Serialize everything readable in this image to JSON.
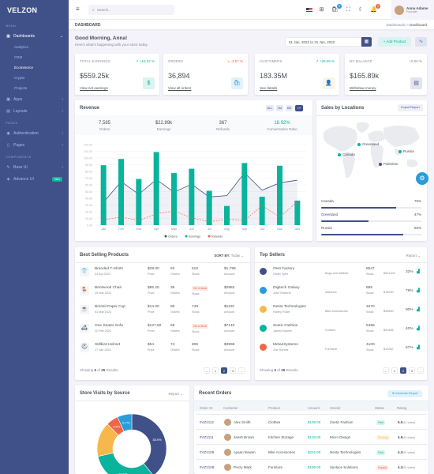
{
  "brand": "VELZON",
  "sidebar": {
    "menu_title": "MENU",
    "pages_title": "PAGES",
    "components_title": "COMPONENTS",
    "dashboards": "Dashboards",
    "sub": [
      "Analytics",
      "CRM",
      "Ecommerce",
      "Crypto",
      "Projects"
    ],
    "apps": "Apps",
    "layouts": "Layouts",
    "authentication": "Authentication",
    "pages": "Pages",
    "base_ui": "Base UI",
    "advance_ui": "Advance UI",
    "new_badge": "New"
  },
  "topbar": {
    "search_placeholder": "Search...",
    "cart_count": "5",
    "notif_count": "3",
    "user_name": "Anna Adame",
    "user_role": "Founder"
  },
  "page": {
    "title": "DASHBOARD",
    "crumb_root": "Dashboards",
    "crumb_sep": ">",
    "crumb_current": "Dashboard",
    "greeting": "Good Morning, Anna!",
    "greeting_sub": "Here's what's happening with your store today.",
    "date_range": "01 Jan, 2022 to 31 Jan, 2022",
    "add_product": "+ Add Product"
  },
  "kpis": [
    {
      "label": "TOTAL EARNINGS",
      "delta": "↗ +16.24 %",
      "delta_color": "#0ab39c",
      "value": "$559.25k",
      "link": "View net earnings",
      "icon_bg": "#daf4f0",
      "icon_color": "#0ab39c"
    },
    {
      "label": "ORDERS",
      "delta": "↘ -3.57 %",
      "delta_color": "#f06548",
      "value": "36,894",
      "link": "View all orders",
      "icon_bg": "#e1f2fb",
      "icon_color": "#299cdb"
    },
    {
      "label": "CUSTOMERS",
      "delta": "↗ +29.08 %",
      "delta_color": "#0ab39c",
      "value": "183.35M",
      "link": "See details",
      "icon_bg": "#fef4e4",
      "icon_color": "#f7b84b"
    },
    {
      "label": "MY BALANCE",
      "delta": "+0.00 %",
      "delta_color": "#878a99",
      "value": "$165.89k",
      "link": "Withdraw money",
      "icon_bg": "#e2e5ed",
      "icon_color": "#405189"
    }
  ],
  "revenue": {
    "title": "Revenue",
    "buttons": [
      "ALL",
      "1M",
      "6M",
      "1Y"
    ],
    "stats": [
      {
        "value": "7,585",
        "label": "Orders"
      },
      {
        "value": "$22.89k",
        "label": "Earnings"
      },
      {
        "value": "367",
        "label": "Refunds"
      },
      {
        "value": "18.92%",
        "label": "Conversation Ratio"
      }
    ]
  },
  "chart_data": {
    "type": "bar",
    "categories": [
      "Jan",
      "Feb",
      "Mar",
      "Apr",
      "May",
      "Jun",
      "Jul",
      "Aug",
      "Sep",
      "Oct",
      "Nov",
      "Dec"
    ],
    "ylim": [
      0,
      120
    ],
    "yticks": [
      0,
      10,
      20,
      30,
      40,
      50,
      60,
      70,
      80,
      90,
      100,
      110,
      120
    ],
    "series": [
      {
        "name": "Orders",
        "type": "area",
        "color": "#405189",
        "values": [
          34,
          65,
          46,
          68,
          49,
          61,
          42,
          44,
          78,
          52,
          63,
          67
        ]
      },
      {
        "name": "Earnings",
        "type": "bar",
        "color": "#0ab39c",
        "values": [
          89.25,
          98.58,
          68.74,
          108.87,
          77.54,
          84.03,
          51.24,
          28.57,
          92.57,
          42.36,
          88.51,
          36.57
        ]
      },
      {
        "name": "Refunds",
        "type": "line",
        "color": "#f06548",
        "values": [
          8,
          12,
          7,
          17,
          21,
          11,
          5,
          9,
          7,
          29,
          12,
          35
        ]
      }
    ]
  },
  "locations": {
    "title": "Sales by Locations",
    "export": "Export Report",
    "markers": [
      "Greenland",
      "Canada",
      "Russia",
      "Palestine"
    ],
    "rows": [
      {
        "name": "Canada",
        "pct": "75%",
        "value": 75
      },
      {
        "name": "Greenland",
        "pct": "47%",
        "value": 47
      },
      {
        "name": "Russia",
        "pct": "82%",
        "value": 82
      }
    ]
  },
  "best_selling": {
    "title": "Best Selling Products",
    "sort_label": "SORT BY:",
    "sort_value": "Today ⌄",
    "price_label": "Price",
    "orders_label": "Orders",
    "stock_label": "Stock",
    "amount_label": "Amount",
    "oos": "Out of stock",
    "rows": [
      {
        "name": "Branded T-Shirts",
        "date": "24 Apr 2021",
        "price": "$29.00",
        "orders": "62",
        "stock": "510",
        "oos": false,
        "amount": "$1,798",
        "icon": "👕"
      },
      {
        "name": "Bentwood Chair",
        "date": "19 Mar 2021",
        "price": "$85.20",
        "orders": "35",
        "stock": "",
        "oos": true,
        "amount": "$2982",
        "icon": "🪑"
      },
      {
        "name": "Borosil Paper Cup",
        "date": "01 Mar 2021",
        "price": "$14.00",
        "orders": "80",
        "stock": "749",
        "oos": false,
        "amount": "$1120",
        "icon": "☕"
      },
      {
        "name": "One Seater Sofa",
        "date": "11 Feb 2021",
        "price": "$127.50",
        "orders": "56",
        "stock": "",
        "oos": true,
        "amount": "$7140",
        "icon": "🛋"
      },
      {
        "name": "Stillbird Helmet",
        "date": "17 Jan 2021",
        "price": "$54",
        "orders": "74",
        "stock": "805",
        "oos": false,
        "amount": "$3996",
        "icon": "⛑"
      }
    ],
    "showing_pre": "Showing ",
    "showing_num": "5",
    "showing_mid": " of ",
    "showing_total": "25",
    "showing_post": " Results",
    "pages": [
      "←",
      "1",
      "2",
      "3",
      "→"
    ]
  },
  "top_sellers": {
    "title": "Top Sellers",
    "report": "Report ⌄",
    "stock_label": "Stock",
    "rows": [
      {
        "name": "iTest Factory",
        "owner": "Oliver Tyler",
        "cat": "Bags and Wallets",
        "stock": "8547",
        "amount": "$541200",
        "pct": "32%",
        "icon_color": "#405189"
      },
      {
        "name": "Digitech Galaxy",
        "owner": "John Roberts",
        "cat": "Watches",
        "stock": "895",
        "amount": "$75030",
        "pct": "79%",
        "icon_color": "#299cdb"
      },
      {
        "name": "Nesta Technologies",
        "owner": "Harley Fuller",
        "cat": "Bike Accessories",
        "stock": "3470",
        "amount": "$45600",
        "pct": "90%",
        "icon_color": "#f7b84b"
      },
      {
        "name": "Zoetic Fashion",
        "owner": "James Bowen",
        "cat": "Clothes",
        "stock": "5488",
        "amount": "$29456",
        "pct": "40%",
        "icon_color": "#0ab39c"
      },
      {
        "name": "Meta4Systems",
        "owner": "Zoe Dennis",
        "cat": "Furniture",
        "stock": "4100",
        "amount": "$11260",
        "pct": "57%",
        "icon_color": "#f06548"
      }
    ],
    "showing_pre": "Showing ",
    "showing_num": "5",
    "showing_mid": " of ",
    "showing_total": "25",
    "showing_post": " Results",
    "pages": [
      "←",
      "1",
      "2",
      "3",
      "→"
    ]
  },
  "store_visits": {
    "title": "Store Visits by Source",
    "report": "Report ⌄",
    "slices": [
      {
        "label": "38.9%",
        "value": 38.9,
        "color": "#405189"
      },
      {
        "label": "32.0%",
        "value": 32.0,
        "color": "#0ab39c"
      },
      {
        "label": "",
        "value": 16.0,
        "color": "#f7b84b"
      },
      {
        "label": "5.6%",
        "value": 5.6,
        "color": "#f06548"
      },
      {
        "label": "6.7%",
        "value": 6.7,
        "color": "#299cdb"
      }
    ]
  },
  "recent_orders": {
    "title": "Recent Orders",
    "generate": "⊕ Generate Report",
    "headers": [
      "Order ID",
      "Customer",
      "Product",
      "Amount",
      "Vendor",
      "Status",
      "Rating"
    ],
    "rows": [
      {
        "id": "#VZ2112",
        "customer": "Alex Smith",
        "product": "Clothes",
        "amount": "$109.00",
        "vendor": "Zoetic Fashion",
        "status": "Paid",
        "rating": "5.0",
        "votes": "(61 votes)"
      },
      {
        "id": "#VZ2111",
        "customer": "Jansh Brown",
        "product": "Kitchen Storage",
        "amount": "$149.00",
        "vendor": "Micro Design",
        "status": "Pending",
        "rating": "4.5",
        "votes": "(61 votes)"
      },
      {
        "id": "#VZ2109",
        "customer": "Ayaan Bowen",
        "product": "Bike Accessories",
        "amount": "$215.00",
        "vendor": "Nesta Technologies",
        "status": "Paid",
        "rating": "4.3",
        "votes": "(61 votes)"
      },
      {
        "id": "#VZ2108",
        "customer": "Prezy Mark",
        "product": "Furniture",
        "amount": "$199.00",
        "vendor": "Syntyce Solutions",
        "status": "Unpaid",
        "rating": "4.3",
        "votes": "(61 votes)"
      }
    ]
  },
  "colors": {
    "primary": "#405189",
    "success": "#0ab39c",
    "danger": "#f06548",
    "warning": "#f7b84b",
    "info": "#299cdb"
  }
}
